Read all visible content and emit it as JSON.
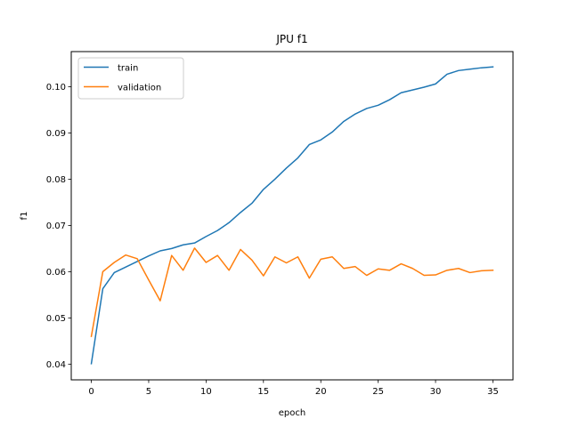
{
  "chart_data": {
    "type": "line",
    "title": "JPU f1",
    "xlabel": "epoch",
    "ylabel": "f1",
    "xlim": [
      -1.75,
      36.75
    ],
    "ylim": [
      0.0366,
      0.1076
    ],
    "xticks": [
      0,
      5,
      10,
      15,
      20,
      25,
      30,
      35
    ],
    "yticks": [
      0.04,
      0.05,
      0.06,
      0.07,
      0.08,
      0.09,
      0.1
    ],
    "ytick_labels": [
      "0.04",
      "0.05",
      "0.06",
      "0.07",
      "0.08",
      "0.09",
      "0.10"
    ],
    "grid": false,
    "legend_position": "upper-left",
    "x": [
      0,
      1,
      2,
      3,
      4,
      5,
      6,
      7,
      8,
      9,
      10,
      11,
      12,
      13,
      14,
      15,
      16,
      17,
      18,
      19,
      20,
      21,
      22,
      23,
      24,
      25,
      26,
      27,
      28,
      29,
      30,
      31,
      32,
      33,
      34,
      35
    ],
    "series": [
      {
        "name": "train",
        "color": "#1f77b4",
        "values": [
          0.0401,
          0.0563,
          0.0598,
          0.061,
          0.0622,
          0.0634,
          0.0645,
          0.065,
          0.0658,
          0.0662,
          0.0676,
          0.0689,
          0.0706,
          0.0728,
          0.0748,
          0.0778,
          0.08,
          0.0824,
          0.0846,
          0.0875,
          0.0885,
          0.0902,
          0.0925,
          0.0941,
          0.0953,
          0.096,
          0.0972,
          0.0987,
          0.0993,
          0.0999,
          0.1006,
          0.1027,
          0.1035,
          0.1038,
          0.1041,
          0.1043
        ]
      },
      {
        "name": "validation",
        "color": "#ff7f0e",
        "values": [
          0.046,
          0.06,
          0.062,
          0.0636,
          0.0628,
          0.0582,
          0.0537,
          0.0635,
          0.0603,
          0.0651,
          0.062,
          0.0635,
          0.0603,
          0.0648,
          0.0625,
          0.0591,
          0.0632,
          0.0619,
          0.0632,
          0.0586,
          0.0627,
          0.0632,
          0.0607,
          0.0611,
          0.0592,
          0.0606,
          0.0603,
          0.0617,
          0.0607,
          0.0592,
          0.0593,
          0.0603,
          0.0607,
          0.0598,
          0.0602,
          0.0603
        ]
      }
    ]
  }
}
